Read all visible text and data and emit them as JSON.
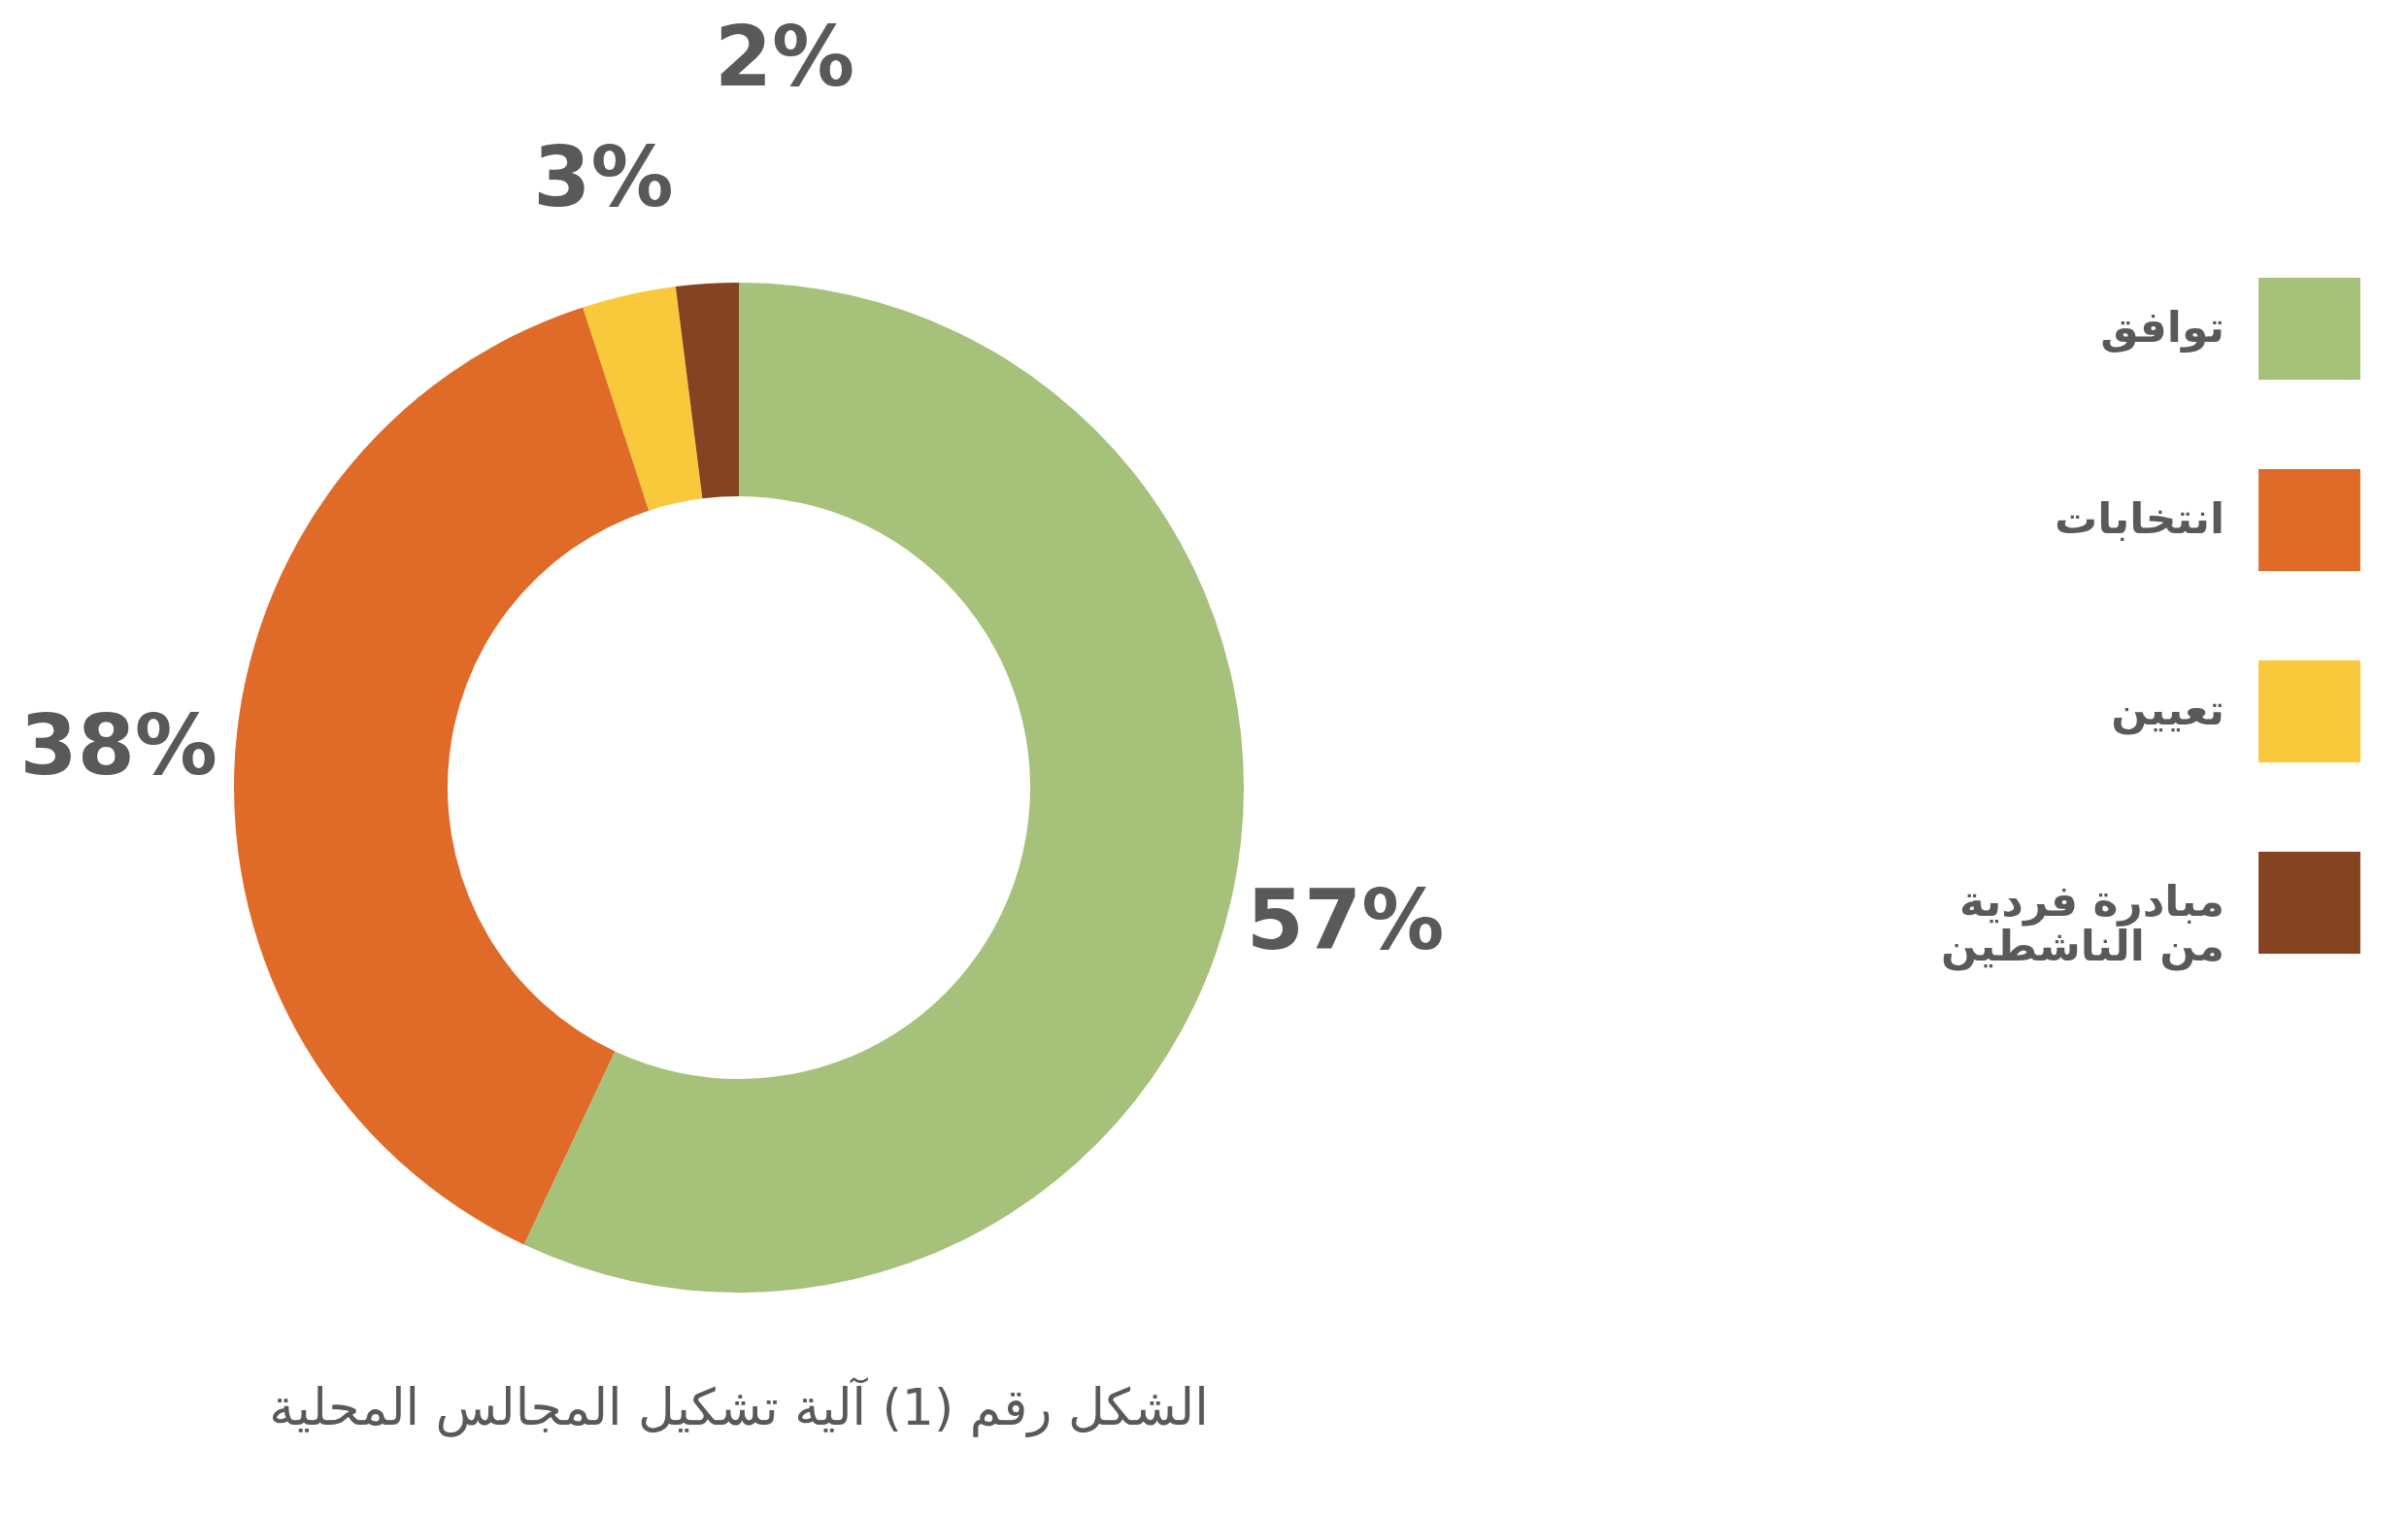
{
  "chart_data": {
    "type": "donut",
    "title": "الشكل رقم (1) آلية تشكيل المجالس المحلية",
    "categories": [
      "توافق",
      "انتخابات",
      "تعيين",
      "مبادرة فردية من الناشطين"
    ],
    "values": [
      57,
      38,
      3,
      2
    ],
    "colors": [
      "#a6c17a",
      "#e06a27",
      "#f9c83b",
      "#854321"
    ],
    "value_labels": [
      "57%",
      "38%",
      "3%",
      "2%"
    ],
    "legend": "right"
  }
}
